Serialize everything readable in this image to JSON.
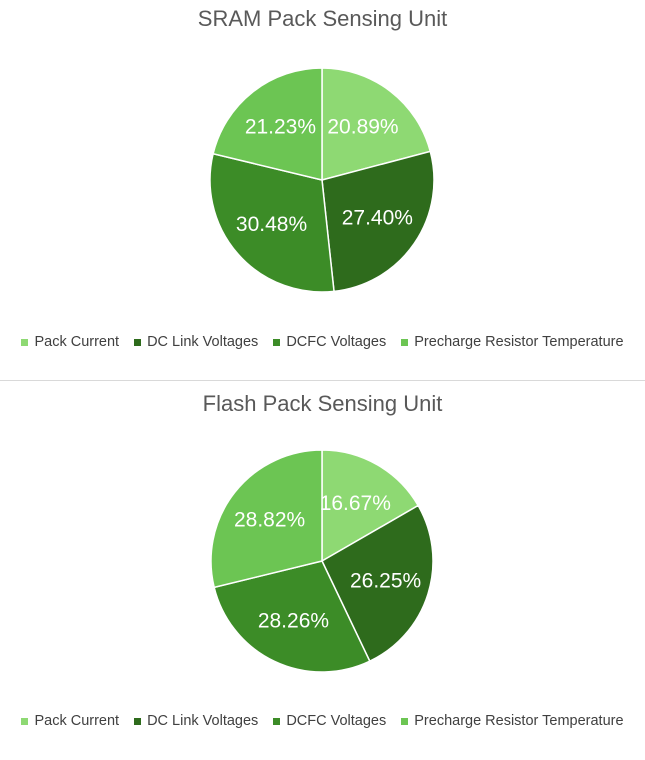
{
  "chart_data": [
    {
      "type": "pie",
      "title": "SRAM Pack Sensing Unit",
      "slices": [
        {
          "label": "Pack Current",
          "value": 20.89,
          "data_label": "20.89%",
          "color": "#8ed973"
        },
        {
          "label": "DC Link Voltages",
          "value": 27.4,
          "data_label": "27.40%",
          "color": "#2e6b1c"
        },
        {
          "label": "DCFC Voltages",
          "value": 30.48,
          "data_label": "30.48%",
          "color": "#3c8c27"
        },
        {
          "label": "Precharge Resistor Temperature",
          "value": 21.23,
          "data_label": "21.23%",
          "color": "#6cc553"
        }
      ],
      "legend_position": "bottom"
    },
    {
      "type": "pie",
      "title": "Flash Pack Sensing Unit",
      "slices": [
        {
          "label": "Pack Current",
          "value": 16.67,
          "data_label": "16.67%",
          "color": "#8ed973"
        },
        {
          "label": "DC Link Voltages",
          "value": 26.25,
          "data_label": "26.25%",
          "color": "#2e6b1c"
        },
        {
          "label": "DCFC Voltages",
          "value": 28.26,
          "data_label": "28.26%",
          "color": "#3c8c27"
        },
        {
          "label": "Precharge Resistor Temperature",
          "value": 28.82,
          "data_label": "28.82%",
          "color": "#6cc553"
        }
      ],
      "legend_position": "bottom"
    }
  ]
}
